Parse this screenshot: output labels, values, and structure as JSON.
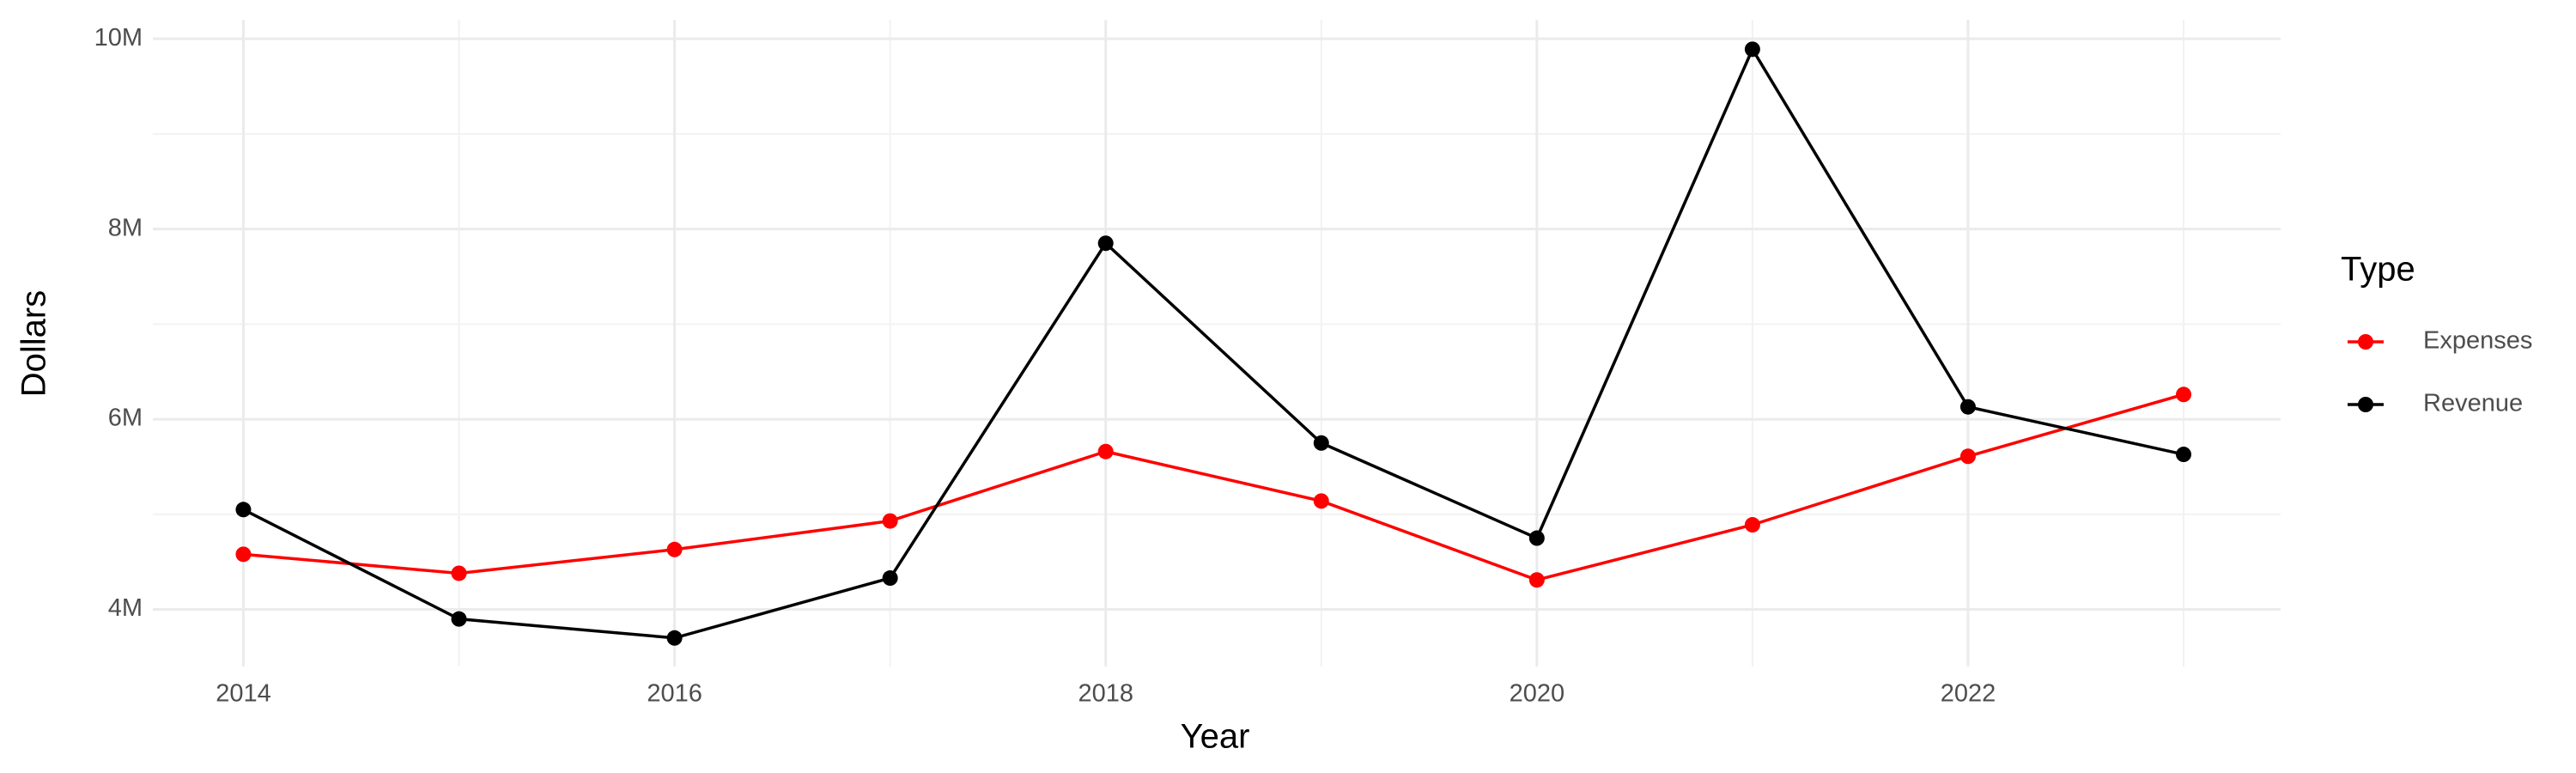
{
  "chart_data": {
    "type": "line",
    "x_label": "Year",
    "y_label": "Dollars",
    "x": [
      2014,
      2015,
      2016,
      2017,
      2018,
      2019,
      2020,
      2021,
      2022,
      2023
    ],
    "series": [
      {
        "name": "Expenses",
        "color": "#ff0000",
        "values": [
          4580000,
          4380000,
          4630000,
          4930000,
          5660000,
          5140000,
          4310000,
          4890000,
          5610000,
          6260000
        ]
      },
      {
        "name": "Revenue",
        "color": "#000000",
        "values": [
          5050000,
          3900000,
          3700000,
          4330000,
          7850000,
          5750000,
          4750000,
          9890000,
          6130000,
          5630000
        ]
      }
    ],
    "legend_title": "Type",
    "legend_position": "right",
    "xlim": [
      2013.58,
      2023.45
    ],
    "xticks": [
      2014,
      2016,
      2018,
      2020,
      2022
    ],
    "minor_xticks": [
      2015,
      2017,
      2019,
      2021,
      2023
    ],
    "ylim": [
      3400000,
      10200000
    ],
    "yticks": [
      {
        "value": 4000000,
        "label": "4M"
      },
      {
        "value": 6000000,
        "label": "6M"
      },
      {
        "value": 8000000,
        "label": "8M"
      },
      {
        "value": 10000000,
        "label": "10M"
      }
    ],
    "minor_yticks": [
      5000000,
      7000000,
      9000000
    ],
    "grid": true
  }
}
